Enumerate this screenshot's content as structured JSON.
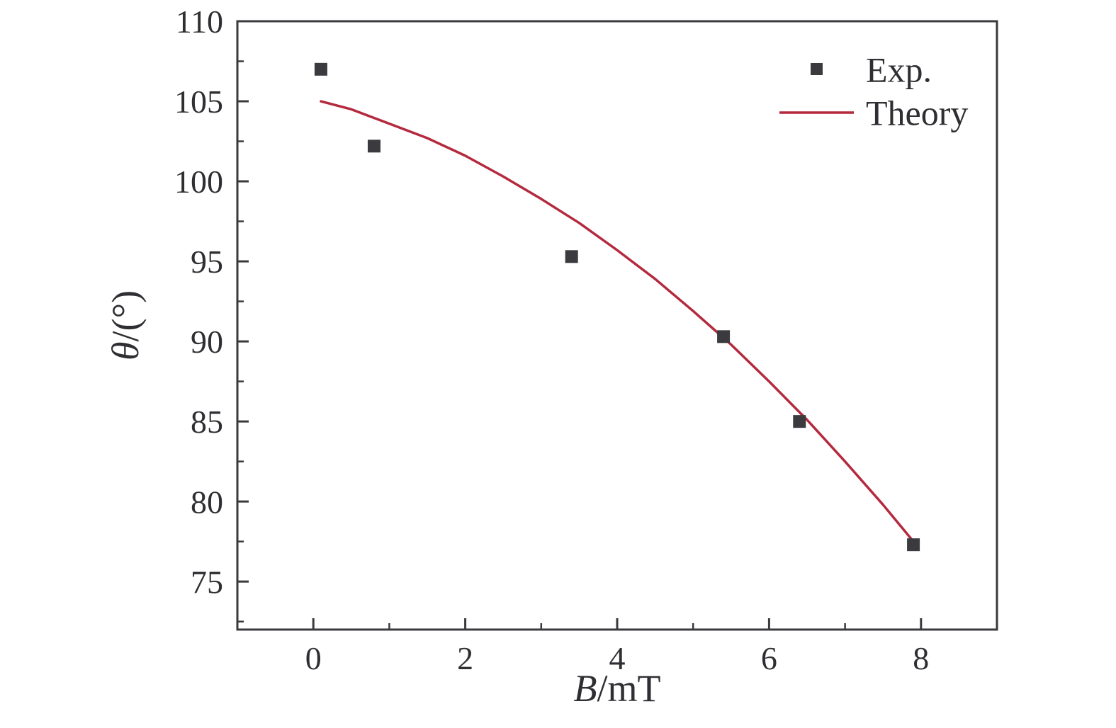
{
  "figure": {
    "background": "#ffffff",
    "axis_color": "#3a3a3e",
    "text_color": "#2f2f33"
  },
  "chart_data": {
    "type": "scatter",
    "title": "",
    "xlabel": "B/mT",
    "xlabel_parts": [
      {
        "text": "B",
        "italic": true
      },
      {
        "text": "/mT",
        "italic": false
      }
    ],
    "ylabel": "θ/(°)",
    "ylabel_parts": [
      {
        "text": "θ",
        "italic": true
      },
      {
        "text": "/(°)",
        "italic": false
      }
    ],
    "xlim": [
      -1,
      9
    ],
    "ylim": [
      72,
      110
    ],
    "x_major_ticks": [
      0,
      2,
      4,
      6,
      8
    ],
    "x_major_tick_labels": [
      "0",
      "2",
      "4",
      "6",
      "8"
    ],
    "x_minor_ticks": [
      -1,
      1,
      3,
      5,
      7,
      9
    ],
    "y_major_ticks": [
      75,
      80,
      85,
      90,
      95,
      100,
      105,
      110
    ],
    "y_major_tick_labels": [
      "75",
      "80",
      "85",
      "90",
      "95",
      "100",
      "105",
      "110"
    ],
    "y_minor_ticks": [
      72.5,
      77.5,
      82.5,
      87.5,
      92.5,
      97.5,
      102.5,
      107.5
    ],
    "grid": false,
    "legend_position": "top-right",
    "series": [
      {
        "name": "Exp.",
        "type": "scatter",
        "marker": "square",
        "color": "#3b3b3f",
        "x": [
          0.1,
          0.8,
          3.4,
          5.4,
          6.4,
          7.9
        ],
        "y": [
          107.0,
          102.2,
          95.3,
          90.3,
          85.0,
          77.3
        ]
      },
      {
        "name": "Theory",
        "type": "line",
        "color": "#b4293d",
        "x": [
          0.1,
          0.5,
          1.0,
          1.5,
          2.0,
          2.5,
          3.0,
          3.5,
          4.0,
          4.5,
          5.0,
          5.5,
          6.0,
          6.5,
          7.0,
          7.5,
          7.9
        ],
        "y": [
          105.0,
          104.5,
          103.6,
          102.7,
          101.6,
          100.3,
          98.9,
          97.4,
          95.7,
          93.9,
          91.9,
          89.8,
          87.5,
          85.1,
          82.5,
          79.8,
          77.5
        ]
      }
    ],
    "legend": {
      "entries": [
        {
          "label": "Exp.",
          "swatch": "square-marker"
        },
        {
          "label": "Theory",
          "swatch": "line"
        }
      ]
    }
  }
}
